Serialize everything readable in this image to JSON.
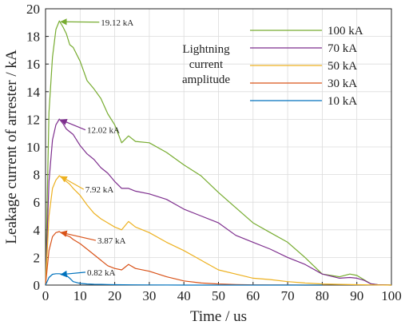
{
  "chart_data": {
    "type": "line",
    "xlabel": "Time / us",
    "ylabel": "Leakage current of arrester / kA",
    "xlim": [
      0,
      100
    ],
    "ylim": [
      0,
      20
    ],
    "xticks": [
      "0",
      "10",
      "20",
      "30",
      "40",
      "50",
      "60",
      "70",
      "80",
      "90",
      "100"
    ],
    "yticks": [
      "0",
      "2",
      "4",
      "6",
      "8",
      "10",
      "12",
      "14",
      "16",
      "18",
      "20"
    ],
    "grid": true,
    "legend": {
      "placement": "top-right",
      "title": [
        "Lightning",
        "current",
        "amplitude"
      ]
    },
    "series": [
      {
        "name": "100 kA",
        "color": "#77ac30",
        "x": [
          0,
          1,
          2,
          3,
          4,
          5,
          6,
          7,
          8,
          10,
          12,
          14,
          16,
          18,
          20,
          22,
          24,
          26,
          30,
          35,
          40,
          45,
          50,
          55,
          60,
          65,
          70,
          75,
          80,
          85,
          88,
          90,
          92,
          94,
          96,
          100
        ],
        "y": [
          0,
          12.5,
          16.5,
          18.5,
          19.12,
          18.7,
          18.2,
          17.4,
          17.2,
          16.2,
          14.8,
          14.2,
          13.5,
          12.4,
          11.6,
          10.3,
          10.8,
          10.4,
          10.3,
          9.6,
          8.7,
          7.9,
          6.7,
          5.6,
          4.5,
          3.8,
          3.1,
          2.0,
          0.8,
          0.6,
          0.8,
          0.7,
          0.4,
          0.1,
          0.03,
          0
        ]
      },
      {
        "name": "70 kA",
        "color": "#7e2f8e",
        "x": [
          0,
          1,
          2,
          3,
          4,
          5,
          6,
          7,
          8,
          10,
          12,
          14,
          16,
          18,
          20,
          22,
          24,
          26,
          30,
          35,
          40,
          45,
          50,
          55,
          60,
          65,
          70,
          75,
          80,
          85,
          88,
          90,
          92,
          94,
          96,
          100
        ],
        "y": [
          0,
          7.5,
          10.5,
          11.6,
          12.02,
          11.7,
          11.3,
          11.1,
          10.9,
          10.1,
          9.5,
          9.1,
          8.5,
          8.1,
          7.5,
          7.0,
          7.0,
          6.8,
          6.6,
          6.2,
          5.5,
          5.0,
          4.5,
          3.6,
          3.1,
          2.6,
          2.0,
          1.5,
          0.8,
          0.5,
          0.55,
          0.5,
          0.35,
          0.1,
          0.03,
          0
        ]
      },
      {
        "name": "50 kA",
        "color": "#edb120",
        "x": [
          0,
          1,
          2,
          3,
          4,
          5,
          6,
          7,
          8,
          10,
          12,
          14,
          16,
          18,
          20,
          22,
          24,
          26,
          30,
          35,
          40,
          45,
          50,
          55,
          60,
          65,
          70,
          75,
          80,
          85,
          90,
          95,
          100
        ],
        "y": [
          0,
          5.0,
          7.0,
          7.6,
          7.92,
          7.7,
          7.5,
          7.3,
          7.0,
          6.5,
          5.8,
          5.2,
          4.8,
          4.5,
          4.2,
          4.0,
          4.6,
          4.2,
          3.8,
          3.1,
          2.5,
          1.8,
          1.1,
          0.8,
          0.5,
          0.4,
          0.25,
          0.15,
          0.08,
          0.05,
          0.03,
          0.01,
          0
        ]
      },
      {
        "name": "30 kA",
        "color": "#d95319",
        "x": [
          0,
          1,
          2,
          3,
          4,
          5,
          6,
          7,
          8,
          10,
          12,
          14,
          16,
          18,
          20,
          22,
          24,
          26,
          30,
          35,
          40,
          45,
          50,
          55,
          60,
          65,
          70,
          75,
          80
        ],
        "y": [
          0,
          2.5,
          3.5,
          3.8,
          3.87,
          3.7,
          3.6,
          3.5,
          3.3,
          3.0,
          2.6,
          2.2,
          1.8,
          1.4,
          1.2,
          1.1,
          1.5,
          1.2,
          1.0,
          0.6,
          0.3,
          0.15,
          0.08,
          0.04,
          0.02,
          0.01,
          0.01,
          0,
          0
        ]
      },
      {
        "name": "10 kA",
        "color": "#0072bd",
        "x": [
          0,
          1,
          2,
          3,
          4,
          5,
          6,
          7,
          8,
          10,
          12,
          14,
          16,
          18,
          20,
          25,
          30,
          40,
          50,
          60,
          70,
          80
        ],
        "y": [
          0,
          0.55,
          0.78,
          0.82,
          0.82,
          0.78,
          0.7,
          0.5,
          0.25,
          0.12,
          0.08,
          0.06,
          0.05,
          0.04,
          0.03,
          0.02,
          0.01,
          0,
          0,
          0,
          0,
          0
        ]
      }
    ],
    "annotations": [
      {
        "text": "19.12 kA",
        "x": 3.5,
        "y": 19.12,
        "label_x": 16,
        "label_y": 18.8,
        "color": "#77ac30"
      },
      {
        "text": "12.02 kA",
        "x": 3.5,
        "y": 12.02,
        "label_x": 12,
        "label_y": 11.0,
        "color": "#7e2f8e"
      },
      {
        "text": "7.92 kA",
        "x": 3.5,
        "y": 7.92,
        "label_x": 11.5,
        "label_y": 6.7,
        "color": "#edb120"
      },
      {
        "text": "3.87 kA",
        "x": 3.5,
        "y": 3.87,
        "label_x": 15,
        "label_y": 3.0,
        "color": "#d95319"
      },
      {
        "text": "0.82 kA",
        "x": 3.5,
        "y": 0.82,
        "label_x": 12,
        "label_y": 0.7,
        "color": "#0072bd"
      }
    ]
  }
}
